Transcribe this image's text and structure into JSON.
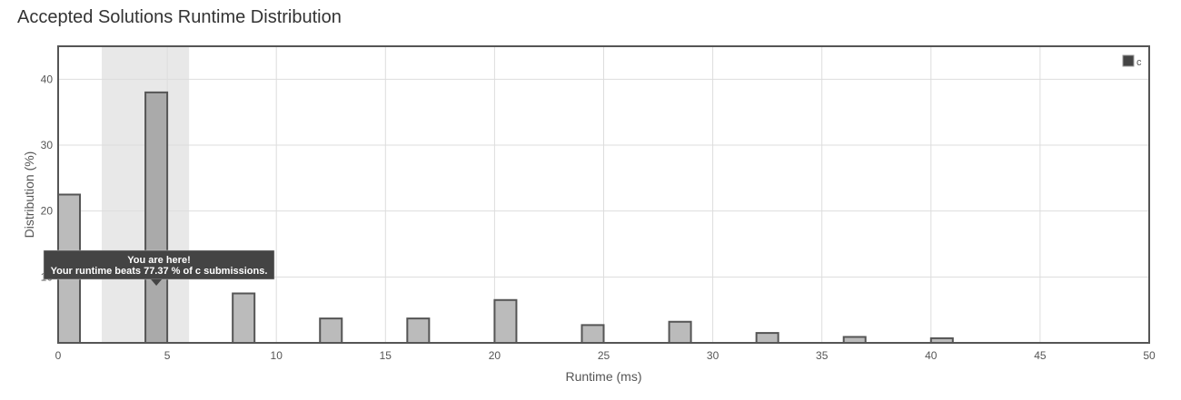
{
  "page": {
    "title": "Accepted Solutions Runtime Distribution"
  },
  "chart_data": {
    "type": "bar",
    "title": "Accepted Solutions Runtime Distribution",
    "xlabel": "Runtime (ms)",
    "ylabel": "Distribution (%)",
    "xlim": [
      0,
      50
    ],
    "ylim": [
      0,
      45
    ],
    "x_ticks": [
      0,
      5,
      10,
      15,
      20,
      25,
      30,
      35,
      40,
      45,
      50
    ],
    "y_ticks": [
      10,
      20,
      30,
      40
    ],
    "grid": true,
    "legend_position": "top-right",
    "bar_width": 1,
    "series": [
      {
        "name": "c",
        "color": "#bbbbbb",
        "border_color": "#555555",
        "x": [
          0.5,
          4.5,
          8.5,
          12.5,
          16.5,
          20.5,
          24.5,
          28.5,
          32.5,
          36.5,
          40.5
        ],
        "values": [
          22.5,
          38.0,
          7.5,
          3.7,
          3.7,
          6.5,
          2.7,
          3.2,
          1.5,
          0.9,
          0.7
        ]
      }
    ],
    "highlight": {
      "x_range": [
        2,
        6
      ],
      "bar_index": 1,
      "band_color": "#e8e8e8",
      "bar_color": "#aaaaaa"
    },
    "tooltip": {
      "line1": "You are here!",
      "line2": "Your runtime beats 77.37 % of c submissions.",
      "background": "#444444"
    }
  }
}
